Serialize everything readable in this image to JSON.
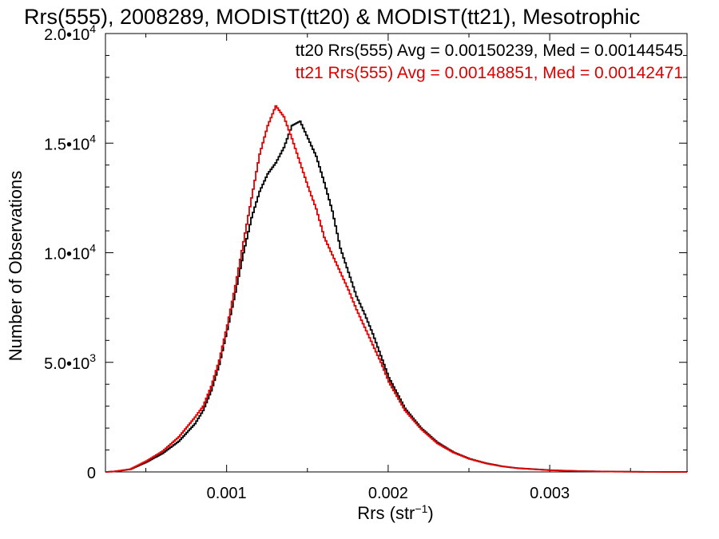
{
  "chart_data": {
    "type": "line",
    "title": "Rrs(555), 2008289, MODIST(tt20) & MODIST(tt21), Mesotrophic",
    "xlabel_main": "Rrs (str",
    "xlabel_sup": "−1",
    "xlabel_close": ")",
    "ylabel": "Number of Observations",
    "xlim": [
      0.00025,
      0.00385
    ],
    "ylim": [
      0,
      20000
    ],
    "x_ticks": [
      {
        "value": 0.001,
        "label": "0.001"
      },
      {
        "value": 0.002,
        "label": "0.002"
      },
      {
        "value": 0.003,
        "label": "0.003"
      }
    ],
    "y_ticks": [
      {
        "value": 0,
        "label": "0",
        "sup": ""
      },
      {
        "value": 5000,
        "label": "5.0•10",
        "sup": "3"
      },
      {
        "value": 10000,
        "label": "1.0•10",
        "sup": "4"
      },
      {
        "value": 15000,
        "label": "1.5•10",
        "sup": "4"
      },
      {
        "value": 20000,
        "label": "2.0•10",
        "sup": "4"
      }
    ],
    "grid": false,
    "series": [
      {
        "name": "tt20",
        "legend": "tt20 Rrs(555) Avg = 0.00150239, Med = 0.00144545",
        "color": "#000000",
        "x": [
          0.00025,
          0.0003,
          0.0004,
          0.0005,
          0.0006,
          0.0007,
          0.0008,
          0.00085,
          0.0009,
          0.00095,
          0.001,
          0.00105,
          0.0011,
          0.00115,
          0.0012,
          0.00125,
          0.0013,
          0.00135,
          0.0014,
          0.00145,
          0.0015,
          0.00155,
          0.0016,
          0.00165,
          0.0017,
          0.00175,
          0.0018,
          0.00185,
          0.0019,
          0.00195,
          0.002,
          0.0021,
          0.0022,
          0.0023,
          0.0024,
          0.0025,
          0.0026,
          0.0027,
          0.0028,
          0.003,
          0.0032,
          0.0034,
          0.0036,
          0.00385
        ],
        "y": [
          0,
          20,
          120,
          450,
          850,
          1400,
          2200,
          2800,
          3700,
          4900,
          6500,
          8200,
          10000,
          11600,
          12800,
          13600,
          14100,
          14800,
          15800,
          16000,
          15200,
          14400,
          13200,
          11900,
          10200,
          9100,
          8000,
          7200,
          6300,
          5300,
          4300,
          2900,
          2000,
          1350,
          900,
          600,
          400,
          260,
          170,
          80,
          35,
          15,
          5,
          0
        ]
      },
      {
        "name": "tt21",
        "legend": "tt21 Rrs(555) Avg = 0.00148851, Med = 0.00142471",
        "color": "#e00000",
        "x": [
          0.00025,
          0.0003,
          0.0004,
          0.0005,
          0.0006,
          0.0007,
          0.0008,
          0.00085,
          0.0009,
          0.00095,
          0.001,
          0.00105,
          0.0011,
          0.00115,
          0.0012,
          0.00125,
          0.0013,
          0.00135,
          0.0014,
          0.00145,
          0.0015,
          0.00155,
          0.0016,
          0.00165,
          0.0017,
          0.00175,
          0.0018,
          0.00185,
          0.0019,
          0.00195,
          0.002,
          0.0021,
          0.0022,
          0.0023,
          0.0024,
          0.0025,
          0.0026,
          0.0027,
          0.0028,
          0.003,
          0.0032,
          0.0034,
          0.0036,
          0.00385
        ],
        "y": [
          0,
          20,
          130,
          500,
          950,
          1600,
          2500,
          3000,
          3900,
          5100,
          6700,
          8500,
          10500,
          12500,
          14500,
          15800,
          16700,
          16200,
          15200,
          14100,
          13000,
          12000,
          10700,
          9900,
          9100,
          8300,
          7400,
          6600,
          5800,
          5000,
          4100,
          2800,
          1950,
          1300,
          880,
          590,
          390,
          250,
          165,
          75,
          32,
          12,
          4,
          0
        ]
      }
    ]
  }
}
